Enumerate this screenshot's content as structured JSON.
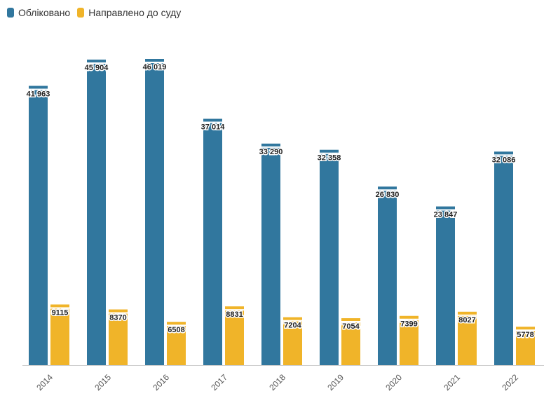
{
  "chart_data": {
    "type": "bar",
    "categories": [
      "2014",
      "2015",
      "2016",
      "2017",
      "2018",
      "2019",
      "2020",
      "2021",
      "2022"
    ],
    "series": [
      {
        "name": "Обліковано",
        "color": "#31779e",
        "values": [
          41963,
          45904,
          46019,
          37014,
          33290,
          32358,
          26830,
          23847,
          32086
        ],
        "labels": [
          "41 963",
          "45 904",
          "46 019",
          "37 014",
          "33 290",
          "32 358",
          "26 830",
          "23 847",
          "32 086"
        ]
      },
      {
        "name": "Направлено до суду",
        "color": "#f0b429",
        "values": [
          9115,
          8370,
          6508,
          8831,
          7204,
          7054,
          7399,
          8027,
          5778
        ],
        "labels": [
          "9115",
          "8370",
          "6508",
          "8831",
          "7204",
          "7054",
          "7399",
          "8027",
          "5778"
        ]
      }
    ],
    "ylim": [
      0,
      46019
    ],
    "legend": "top-left",
    "grid": false
  }
}
